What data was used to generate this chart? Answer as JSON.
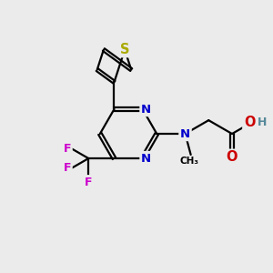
{
  "bg_color": "#ebebeb",
  "bond_color": "#000000",
  "bond_width": 1.6,
  "atom_colors": {
    "N": "#0000cc",
    "S": "#aaaa00",
    "F": "#cc00cc",
    "O": "#cc0000",
    "H": "#558899",
    "C": "#000000"
  },
  "font_size": 9.5
}
